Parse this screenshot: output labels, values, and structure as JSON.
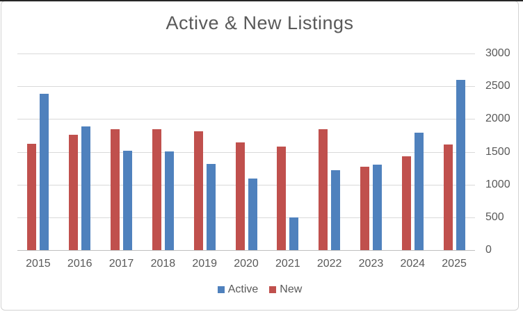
{
  "window": {
    "background": "#ffffff",
    "frame_border_color": "#d2d2d2",
    "top_edge_color": "#262626"
  },
  "chart_data": {
    "type": "bar",
    "title": "Active & New Listings",
    "categories": [
      "2015",
      "2016",
      "2017",
      "2018",
      "2019",
      "2020",
      "2021",
      "2022",
      "2023",
      "2024",
      "2025"
    ],
    "series": [
      {
        "name": "Active",
        "color": "#4f81bd",
        "values": [
          2380,
          1890,
          1520,
          1510,
          1310,
          1090,
          500,
          1220,
          1300,
          1790,
          2600
        ]
      },
      {
        "name": "New",
        "color": "#c0504d",
        "values": [
          1620,
          1760,
          1840,
          1840,
          1810,
          1640,
          1580,
          1840,
          1270,
          1430,
          1610
        ]
      }
    ],
    "bar_draw_order": [
      "New",
      "Active"
    ],
    "xlabel": "",
    "ylabel": "",
    "ylim": [
      0,
      3000
    ],
    "yticks": [
      0,
      500,
      1000,
      1500,
      2000,
      2500,
      3000
    ],
    "y_axis_side": "right",
    "grid": true,
    "legend_position": "bottom",
    "text_color": "#595959",
    "gridline_color": "#d9d9d9",
    "axis_line_color": "#bfbfbf"
  }
}
